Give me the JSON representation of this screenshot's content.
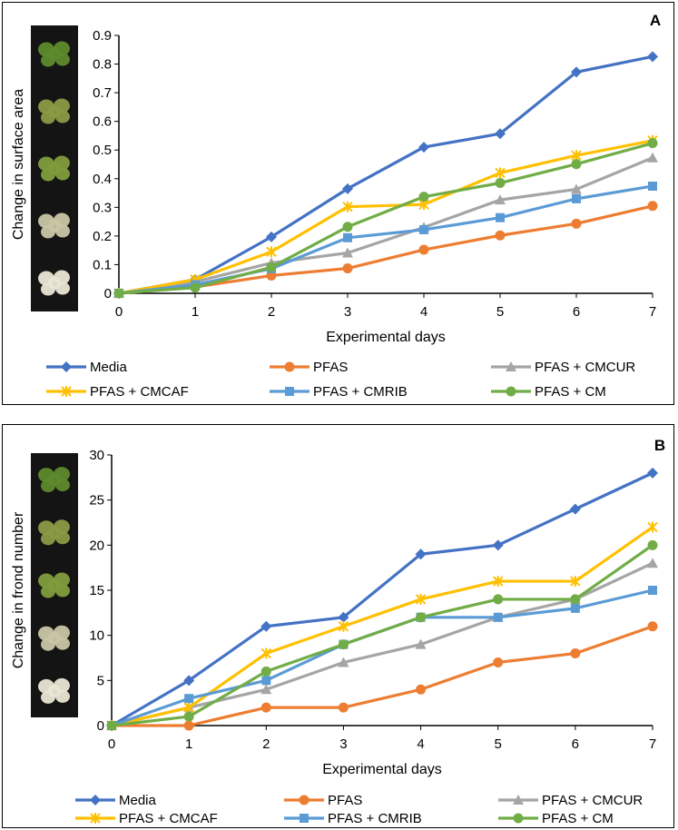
{
  "chart_data": [
    {
      "type": "line",
      "panel_label": "A",
      "xlabel": "Experimental days",
      "ylabel": "Change in surface area",
      "x": [
        0,
        1,
        2,
        3,
        4,
        5,
        6,
        7
      ],
      "xticks": [
        "0",
        "1",
        "2",
        "3",
        "4",
        "5",
        "6",
        "7"
      ],
      "ylim": [
        0,
        0.9
      ],
      "yticks": [
        "0",
        "0.1",
        "0.2",
        "0.3",
        "0.4",
        "0.5",
        "0.6",
        "0.7",
        "0.8",
        "0.9"
      ],
      "legend_position": "bottom",
      "series": [
        {
          "name": "Media",
          "color": "#4472C4",
          "marker": "diamond",
          "values": [
            0,
            0.048,
            0.197,
            0.365,
            0.51,
            0.557,
            0.772,
            0.826
          ]
        },
        {
          "name": "PFAS",
          "color": "#ED7D31",
          "marker": "circle",
          "values": [
            0,
            0.022,
            0.062,
            0.087,
            0.152,
            0.202,
            0.243,
            0.305
          ]
        },
        {
          "name": "PFAS + CMCUR",
          "color": "#A5A5A5",
          "marker": "triangle",
          "values": [
            0,
            0.04,
            0.106,
            0.141,
            0.23,
            0.326,
            0.363,
            0.473
          ]
        },
        {
          "name": "PFAS + CMCAF",
          "color": "#FFC000",
          "marker": "star",
          "values": [
            0,
            0.048,
            0.145,
            0.302,
            0.31,
            0.42,
            0.481,
            0.533
          ]
        },
        {
          "name": "PFAS + CMRIB",
          "color": "#5B9BD5",
          "marker": "square",
          "values": [
            0,
            0.03,
            0.086,
            0.194,
            0.222,
            0.264,
            0.33,
            0.374
          ]
        },
        {
          "name": "PFAS + CM",
          "color": "#70AD47",
          "marker": "circle",
          "values": [
            0,
            0.02,
            0.091,
            0.232,
            0.337,
            0.385,
            0.451,
            0.524
          ]
        }
      ]
    },
    {
      "type": "line",
      "panel_label": "B",
      "xlabel": "Experimental days",
      "ylabel": "Change in frond number",
      "x": [
        0,
        1,
        2,
        3,
        4,
        5,
        6,
        7
      ],
      "xticks": [
        "0",
        "1",
        "2",
        "3",
        "4",
        "5",
        "6",
        "7"
      ],
      "ylim": [
        0,
        30
      ],
      "yticks": [
        "0",
        "5",
        "10",
        "15",
        "20",
        "25",
        "30"
      ],
      "legend_position": "bottom",
      "series": [
        {
          "name": "Media",
          "color": "#4472C4",
          "marker": "diamond",
          "values": [
            0,
            5,
            11,
            12,
            19,
            20,
            24,
            28
          ]
        },
        {
          "name": "PFAS",
          "color": "#ED7D31",
          "marker": "circle",
          "values": [
            0,
            0,
            2,
            2,
            4,
            7,
            8,
            11
          ]
        },
        {
          "name": "PFAS + CMCUR",
          "color": "#A5A5A5",
          "marker": "triangle",
          "values": [
            0,
            2,
            4,
            7,
            9,
            12,
            14,
            18
          ]
        },
        {
          "name": "PFAS + CMCAF",
          "color": "#FFC000",
          "marker": "star",
          "values": [
            0,
            2,
            8,
            11,
            14,
            16,
            16,
            22
          ]
        },
        {
          "name": "PFAS + CMRIB",
          "color": "#5B9BD5",
          "marker": "square",
          "values": [
            0,
            3,
            5,
            9,
            12,
            12,
            13,
            15
          ]
        },
        {
          "name": "PFAS + CM",
          "color": "#70AD47",
          "marker": "circle",
          "values": [
            0,
            1,
            6,
            9,
            12,
            14,
            14,
            20
          ]
        }
      ]
    }
  ],
  "photo_strip": {
    "description_icon": "duckweed-frond-photos",
    "frond_colors": [
      "#5e8a2c",
      "#8a9a45",
      "#7f9c3c",
      "#c9c5a5",
      "#e9e6d4"
    ]
  }
}
